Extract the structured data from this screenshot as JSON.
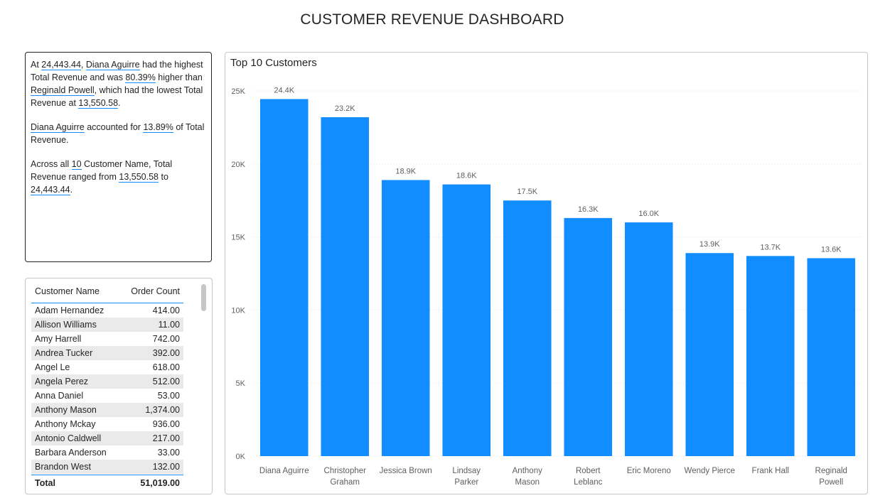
{
  "dashboard": {
    "title": "CUSTOMER REVENUE DASHBOARD"
  },
  "narrative": {
    "p1": {
      "t1": "At ",
      "v1": "24,443.44",
      "t2": ", ",
      "v2": "Diana Aguirre",
      "t3": " had the highest Total Revenue and was ",
      "v3": "80.39%",
      "t4": " higher than ",
      "v4": "Reginald Powell",
      "t5": ", which had the lowest Total Revenue at ",
      "v5": "13,550.58",
      "t6": "."
    },
    "p2": {
      "v1": "Diana Aguirre",
      "t1": " accounted for ",
      "v2": "13.89%",
      "t2": " of Total Revenue."
    },
    "p3": {
      "t1": "Across all ",
      "v1": "10",
      "t2": " Customer Name, Total Revenue ranged from ",
      "v2": "13,550.58",
      "t3": " to ",
      "v3": "24,443.44",
      "t4": "."
    }
  },
  "table": {
    "headers": [
      "Customer Name",
      "Order Count"
    ],
    "rows": [
      [
        "Adam Hernandez",
        "414.00"
      ],
      [
        "Allison Williams",
        "11.00"
      ],
      [
        "Amy Harrell",
        "742.00"
      ],
      [
        "Andrea Tucker",
        "392.00"
      ],
      [
        "Angel Le",
        "618.00"
      ],
      [
        "Angela Perez",
        "512.00"
      ],
      [
        "Anna Daniel",
        "53.00"
      ],
      [
        "Anthony Mason",
        "1,374.00"
      ],
      [
        "Anthony Mckay",
        "936.00"
      ],
      [
        "Antonio Caldwell",
        "217.00"
      ],
      [
        "Barbara Anderson",
        "33.00"
      ],
      [
        "Brandon West",
        "132.00"
      ]
    ],
    "total_label": "Total",
    "total_value": "51,019.00"
  },
  "chart_data": {
    "type": "bar",
    "title": "Top 10 Customers",
    "categories": [
      [
        "Diana Aguirre"
      ],
      [
        "Christopher",
        "Graham"
      ],
      [
        "Jessica Brown"
      ],
      [
        "Lindsay",
        "Parker"
      ],
      [
        "Anthony",
        "Mason"
      ],
      [
        "Robert",
        "Leblanc"
      ],
      [
        "Eric Moreno"
      ],
      [
        "Wendy Pierce"
      ],
      [
        "Frank Hall"
      ],
      [
        "Reginald",
        "Powell"
      ]
    ],
    "values": [
      24443.44,
      23200,
      18900,
      18600,
      17500,
      16300,
      16000,
      13900,
      13700,
      13550.58
    ],
    "data_labels": [
      "24.4K",
      "23.2K",
      "18.9K",
      "18.6K",
      "17.5K",
      "16.3K",
      "16.0K",
      "13.9K",
      "13.7K",
      "13.6K"
    ],
    "yticks": [
      0,
      5000,
      10000,
      15000,
      20000,
      25000
    ],
    "ytick_labels": [
      "0K",
      "5K",
      "10K",
      "15K",
      "20K",
      "25K"
    ],
    "ylim": [
      0,
      25000
    ],
    "bar_color": "#118dff",
    "grid": true
  }
}
